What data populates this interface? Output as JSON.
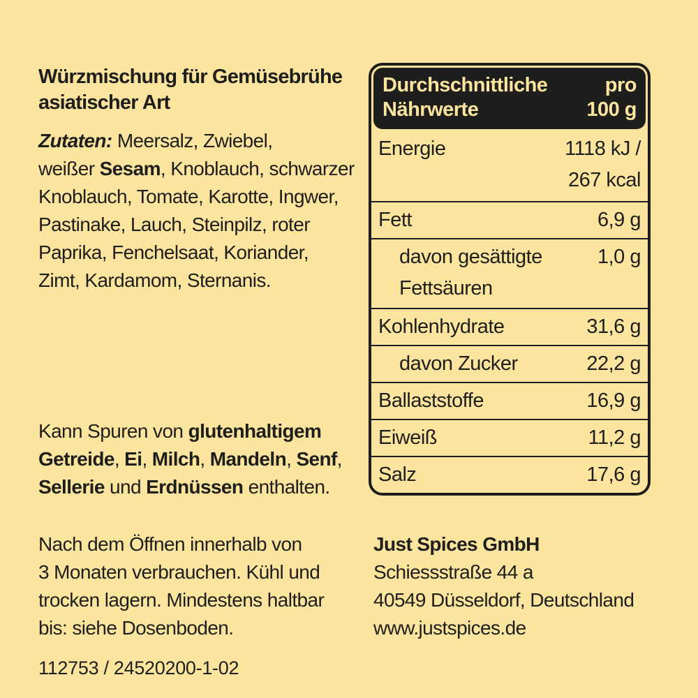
{
  "meta": {
    "background_color": "#fbe49e",
    "ink_color": "#1e1e1c"
  },
  "product": {
    "title_lines": [
      "Würzmischung für Gemüsebrühe",
      "asiatischer Art"
    ]
  },
  "ingredients": {
    "lines": [
      [
        {
          "t": "Zutaten:",
          "s": "bi"
        },
        {
          "t": " Meersalz, Zwiebel,"
        }
      ],
      [
        {
          "t": "weißer "
        },
        {
          "t": "Sesam",
          "s": "b"
        },
        {
          "t": ", Knoblauch, schwarzer"
        }
      ],
      [
        {
          "t": "Knoblauch, Tomate, Karotte, Ingwer,"
        }
      ],
      [
        {
          "t": "Pastinake, Lauch, Steinpilz, roter"
        }
      ],
      [
        {
          "t": "Paprika, Fenchelsaat, Koriander,"
        }
      ],
      [
        {
          "t": "Zimt, Kardamom, Sternanis."
        }
      ]
    ]
  },
  "allergens": {
    "lines": [
      [
        {
          "t": "Kann Spuren von "
        },
        {
          "t": "glutenhaltigem",
          "s": "b"
        }
      ],
      [
        {
          "t": "Getreide",
          "s": "b"
        },
        {
          "t": ", "
        },
        {
          "t": "Ei",
          "s": "b"
        },
        {
          "t": ", "
        },
        {
          "t": "Milch",
          "s": "b"
        },
        {
          "t": ", "
        },
        {
          "t": "Mandeln",
          "s": "b"
        },
        {
          "t": ", "
        },
        {
          "t": "Senf",
          "s": "b"
        },
        {
          "t": ","
        }
      ],
      [
        {
          "t": "Sellerie",
          "s": "b"
        },
        {
          "t": " und "
        },
        {
          "t": "Erdnüssen",
          "s": "b"
        },
        {
          "t": " enthalten."
        }
      ]
    ]
  },
  "storage": {
    "lines": [
      [
        {
          "t": "Nach dem Öffnen innerhalb von"
        }
      ],
      [
        {
          "t": "3 Monaten verbrauchen. Kühl und"
        }
      ],
      [
        {
          "t": "trocken lagern. Mindestens haltbar"
        }
      ],
      [
        {
          "t": "bis: siehe Dosenboden."
        }
      ]
    ]
  },
  "batch_code": "112753 / 24520200-1-02",
  "nutrition": {
    "header": {
      "left_lines": [
        "Durchschnittliche",
        "Nährwerte"
      ],
      "right_lines": [
        "pro",
        "100 g"
      ]
    },
    "rows": [
      {
        "label_lines": [
          "Energie"
        ],
        "value_lines": [
          "1118 kJ /",
          "267 kcal"
        ],
        "indent": false,
        "tall": true
      },
      {
        "label_lines": [
          "Fett"
        ],
        "value_lines": [
          "6,9 g"
        ],
        "indent": false,
        "tall": false
      },
      {
        "label_lines": [
          "davon gesättigte",
          "Fettsäuren"
        ],
        "value_lines": [
          "1,0 g"
        ],
        "indent": true,
        "tall": true
      },
      {
        "label_lines": [
          "Kohlenhydrate"
        ],
        "value_lines": [
          "31,6 g"
        ],
        "indent": false,
        "tall": false
      },
      {
        "label_lines": [
          "davon Zucker"
        ],
        "value_lines": [
          "22,2 g"
        ],
        "indent": true,
        "tall": false
      },
      {
        "label_lines": [
          "Ballaststoffe"
        ],
        "value_lines": [
          "16,9 g"
        ],
        "indent": false,
        "tall": false
      },
      {
        "label_lines": [
          "Eiweiß"
        ],
        "value_lines": [
          "11,2 g"
        ],
        "indent": false,
        "tall": false
      },
      {
        "label_lines": [
          "Salz"
        ],
        "value_lines": [
          "17,6 g"
        ],
        "indent": false,
        "tall": false
      }
    ]
  },
  "company": {
    "lines": [
      [
        {
          "t": "Just Spices GmbH"
        }
      ],
      [
        {
          "t": "Schiessstraße 44 a"
        }
      ],
      [
        {
          "t": "40549 Düsseldorf, Deutschland"
        }
      ],
      [
        {
          "t": "www.justspices.de"
        }
      ]
    ]
  }
}
